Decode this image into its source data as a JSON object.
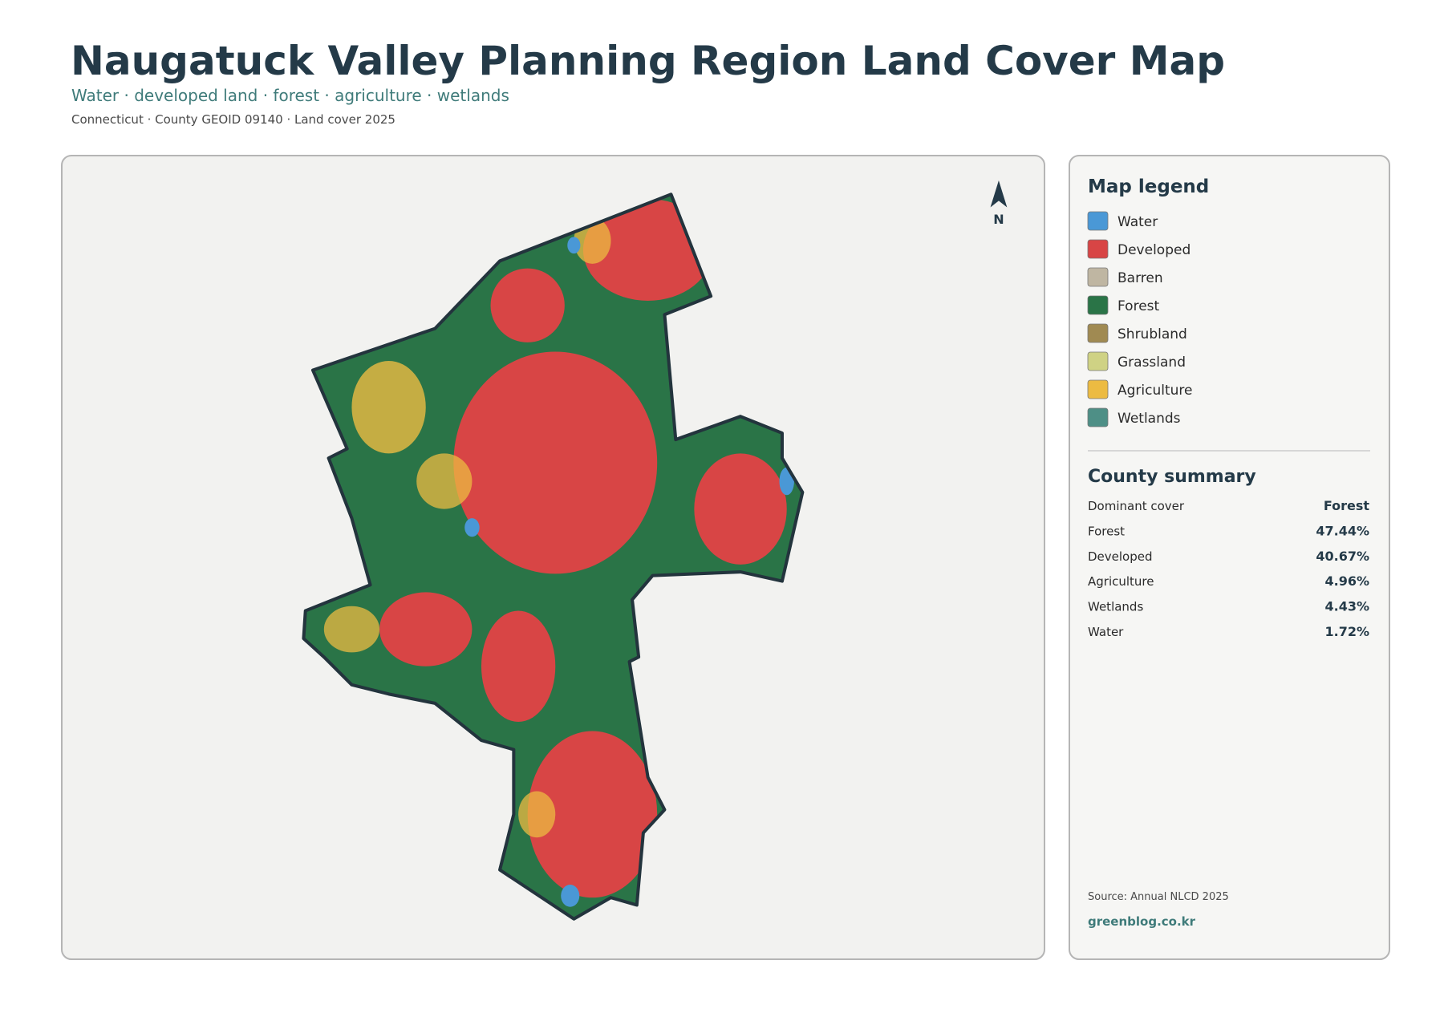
{
  "header": {
    "title": "Naugatuck Valley Planning Region Land Cover Map",
    "subtitle": "Water · developed land · forest · agriculture · wetlands",
    "meta": "Connecticut · County GEOID 09140 · Land cover 2025"
  },
  "map": {
    "north_label": "N"
  },
  "legend": {
    "title": "Map legend",
    "items": [
      {
        "label": "Water",
        "color": "#4a98d6"
      },
      {
        "label": "Developed",
        "color": "#d84545"
      },
      {
        "label": "Barren",
        "color": "#bfb6a2"
      },
      {
        "label": "Forest",
        "color": "#2a7447"
      },
      {
        "label": "Shrubland",
        "color": "#a08a52"
      },
      {
        "label": "Grassland",
        "color": "#cfd284"
      },
      {
        "label": "Agriculture",
        "color": "#ecbb42"
      },
      {
        "label": "Wetlands",
        "color": "#4e8f86"
      }
    ]
  },
  "summary": {
    "title": "County summary",
    "rows": [
      [
        "Dominant cover",
        "Forest"
      ],
      [
        "Forest",
        "47.44%"
      ],
      [
        "Developed",
        "40.67%"
      ],
      [
        "Agriculture",
        "4.96%"
      ],
      [
        "Wetlands",
        "4.43%"
      ],
      [
        "Water",
        "1.72%"
      ]
    ]
  },
  "footer": {
    "source": "Source: Annual NLCD 2025",
    "site": "greenblog.co.kr"
  }
}
